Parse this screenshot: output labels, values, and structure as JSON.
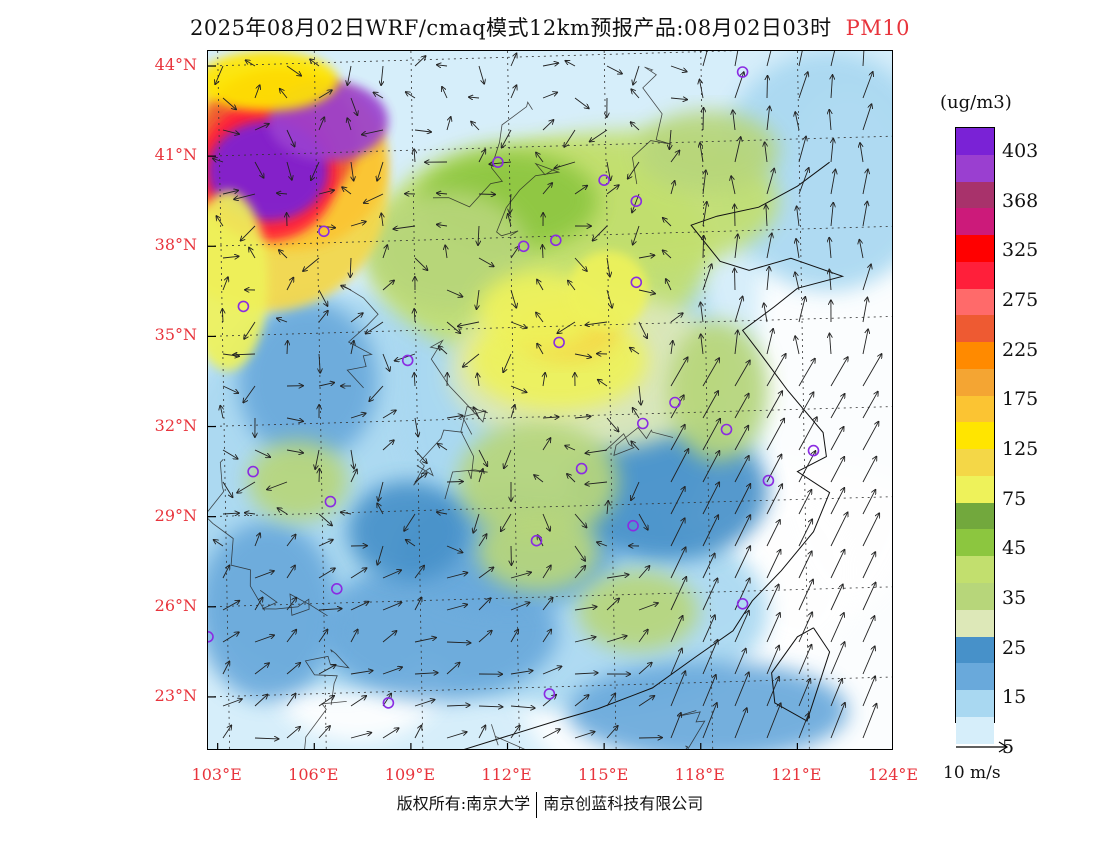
{
  "title": {
    "main": "2025年08月02日WRF/cmaq模式12km预报产品:08月02日03时",
    "pollutant": "PM10"
  },
  "axes": {
    "lat_labels": [
      "44°N",
      "41°N",
      "38°N",
      "35°N",
      "32°N",
      "29°N",
      "26°N",
      "23°N"
    ],
    "lon_labels": [
      "103°E",
      "106°E",
      "109°E",
      "112°E",
      "115°E",
      "118°E",
      "121°E",
      "124°E"
    ]
  },
  "legend": {
    "unit": "(ug/m3)",
    "labels": [
      "403",
      "368",
      "325",
      "275",
      "225",
      "175",
      "125",
      "75",
      "45",
      "35",
      "25",
      "15",
      "5"
    ],
    "colors": [
      "#7a22d6",
      "#9a3fd0",
      "#a8326b",
      "#cc1a7a",
      "#ff0000",
      "#ff1f3a",
      "#ff6a6a",
      "#ee5a32",
      "#ff8a00",
      "#f4a533",
      "#fbc433",
      "#ffe500",
      "#f4d747",
      "#eef25a",
      "#72a83d",
      "#8cc63f",
      "#c2df6e",
      "#b7d67a",
      "#dde8b8",
      "#4791c9",
      "#69a9db",
      "#a9d8f1",
      "#d6eefa",
      "#ffffff"
    ],
    "scale_label": "10 m/s"
  },
  "footer": {
    "left": "版权所有:南京大学",
    "right": "南京创蓝科技有限公司"
  },
  "colors": {
    "accent": "#e8343c",
    "station_marker": "#8a2be2"
  },
  "map": {
    "stations": [
      {
        "lat": 43.8,
        "lon": 119.3
      },
      {
        "lat": 40.8,
        "lon": 111.7
      },
      {
        "lat": 40.2,
        "lon": 115.0
      },
      {
        "lat": 39.5,
        "lon": 116.0
      },
      {
        "lat": 38.5,
        "lon": 106.3
      },
      {
        "lat": 38.0,
        "lon": 112.5
      },
      {
        "lat": 38.2,
        "lon": 113.5
      },
      {
        "lat": 36.8,
        "lon": 116.0
      },
      {
        "lat": 36.0,
        "lon": 103.8
      },
      {
        "lat": 34.8,
        "lon": 113.6
      },
      {
        "lat": 34.2,
        "lon": 108.9
      },
      {
        "lat": 32.8,
        "lon": 117.2
      },
      {
        "lat": 32.1,
        "lon": 116.2
      },
      {
        "lat": 31.9,
        "lon": 118.8
      },
      {
        "lat": 31.2,
        "lon": 121.5
      },
      {
        "lat": 30.5,
        "lon": 104.1
      },
      {
        "lat": 30.6,
        "lon": 114.3
      },
      {
        "lat": 30.2,
        "lon": 120.1
      },
      {
        "lat": 29.5,
        "lon": 106.5
      },
      {
        "lat": 28.7,
        "lon": 115.9
      },
      {
        "lat": 28.2,
        "lon": 112.9
      },
      {
        "lat": 26.6,
        "lon": 106.7
      },
      {
        "lat": 26.1,
        "lon": 119.3
      },
      {
        "lat": 25.0,
        "lon": 102.7
      },
      {
        "lat": 23.1,
        "lon": 113.3
      },
      {
        "lat": 22.8,
        "lon": 108.3
      }
    ]
  }
}
